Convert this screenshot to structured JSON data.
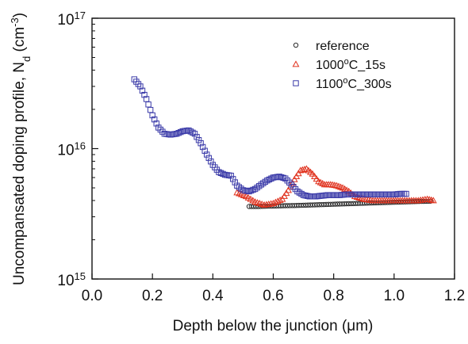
{
  "chart_data": {
    "type": "scatter",
    "xlabel": "Depth below the junction (μm)",
    "ylabel": "Uncompansated doping profile, N_d (cm^-3)",
    "xlim": [
      0.0,
      1.2
    ],
    "ylim": [
      1000000000000000.0,
      1e+17
    ],
    "yscale": "log",
    "grid": false,
    "legend_position": "top-right",
    "x_ticks": [
      "0.0",
      "0.2",
      "0.4",
      "0.6",
      "0.8",
      "1.0",
      "1.2"
    ],
    "y_ticks": [
      {
        "base": "10",
        "exp": "15",
        "value": 1000000000000000.0
      },
      {
        "base": "10",
        "exp": "16",
        "value": 1e+16
      },
      {
        "base": "10",
        "exp": "17",
        "value": 1e+17
      }
    ],
    "series": [
      {
        "name": "reference",
        "marker": "circle",
        "color": "#2b2b2b",
        "x": [
          0.52,
          0.55,
          0.58,
          0.61,
          0.64,
          0.67,
          0.7,
          0.73,
          0.76,
          0.79,
          0.82,
          0.85,
          0.88,
          0.91,
          0.94,
          0.97,
          1.0,
          1.03,
          1.06,
          1.09,
          1.12
        ],
        "y": [
          3600000000000000.0,
          3600000000000000.0,
          3620000000000000.0,
          3630000000000000.0,
          3650000000000000.0,
          3660000000000000.0,
          3680000000000000.0,
          3700000000000000.0,
          3720000000000000.0,
          3740000000000000.0,
          3760000000000000.0,
          3780000000000000.0,
          3800000000000000.0,
          3820000000000000.0,
          3840000000000000.0,
          3860000000000000.0,
          3880000000000000.0,
          3900000000000000.0,
          3920000000000000.0,
          3940000000000000.0,
          3950000000000000.0
        ]
      },
      {
        "name": "1000°C_15s",
        "marker": "triangle",
        "color": "#e0321e",
        "x": [
          0.48,
          0.51,
          0.54,
          0.57,
          0.6,
          0.63,
          0.65,
          0.67,
          0.69,
          0.71,
          0.73,
          0.75,
          0.77,
          0.79,
          0.81,
          0.83,
          0.85,
          0.87,
          0.9,
          0.93,
          0.96,
          0.99,
          1.02,
          1.05,
          1.08,
          1.11,
          1.13
        ],
        "y": [
          4600000000000000.0,
          4300000000000000.0,
          3900000000000000.0,
          3700000000000000.0,
          3800000000000000.0,
          4100000000000000.0,
          4800000000000000.0,
          5800000000000000.0,
          6800000000000000.0,
          7000000000000000.0,
          6400000000000000.0,
          5600000000000000.0,
          5300000000000000.0,
          5300000000000000.0,
          5200000000000000.0,
          5000000000000000.0,
          4700000000000000.0,
          4300000000000000.0,
          4100000000000000.0,
          4000000000000000.0,
          4000000000000000.0,
          4000000000000000.0,
          4000000000000000.0,
          4000000000000000.0,
          4000000000000000.0,
          4100000000000000.0,
          4000000000000000.0
        ]
      },
      {
        "name": "1100°C_300s",
        "marker": "square",
        "color": "#3a3aa8",
        "x": [
          0.14,
          0.16,
          0.18,
          0.2,
          0.22,
          0.24,
          0.26,
          0.28,
          0.3,
          0.32,
          0.34,
          0.36,
          0.38,
          0.4,
          0.42,
          0.44,
          0.46,
          0.48,
          0.5,
          0.52,
          0.54,
          0.56,
          0.58,
          0.6,
          0.62,
          0.64,
          0.66,
          0.68,
          0.7,
          0.72,
          0.74,
          0.76,
          0.78,
          0.8,
          0.82,
          0.84,
          0.86,
          0.88,
          0.9,
          0.92,
          0.94,
          0.96,
          0.98,
          1.0,
          1.02,
          1.04
        ],
        "y": [
          3.4e+16,
          3e+16,
          2.4e+16,
          1.8e+16,
          1.45e+16,
          1.3e+16,
          1.28e+16,
          1.3e+16,
          1.36e+16,
          1.38e+16,
          1.3e+16,
          1.1e+16,
          9000000000000000.0,
          7500000000000000.0,
          6600000000000000.0,
          6300000000000000.0,
          6200000000000000.0,
          5200000000000000.0,
          4800000000000000.0,
          4700000000000000.0,
          4900000000000000.0,
          5300000000000000.0,
          5700000000000000.0,
          6000000000000000.0,
          6100000000000000.0,
          5900000000000000.0,
          5300000000000000.0,
          4700000000000000.0,
          4400000000000000.0,
          4300000000000000.0,
          4300000000000000.0,
          4350000000000000.0,
          4400000000000000.0,
          4400000000000000.0,
          4400000000000000.0,
          4450000000000000.0,
          4450000000000000.0,
          4450000000000000.0,
          4450000000000000.0,
          4450000000000000.0,
          4450000000000000.0,
          4450000000000000.0,
          4450000000000000.0,
          4450000000000000.0,
          4500000000000000.0,
          4500000000000000.0
        ]
      }
    ]
  }
}
